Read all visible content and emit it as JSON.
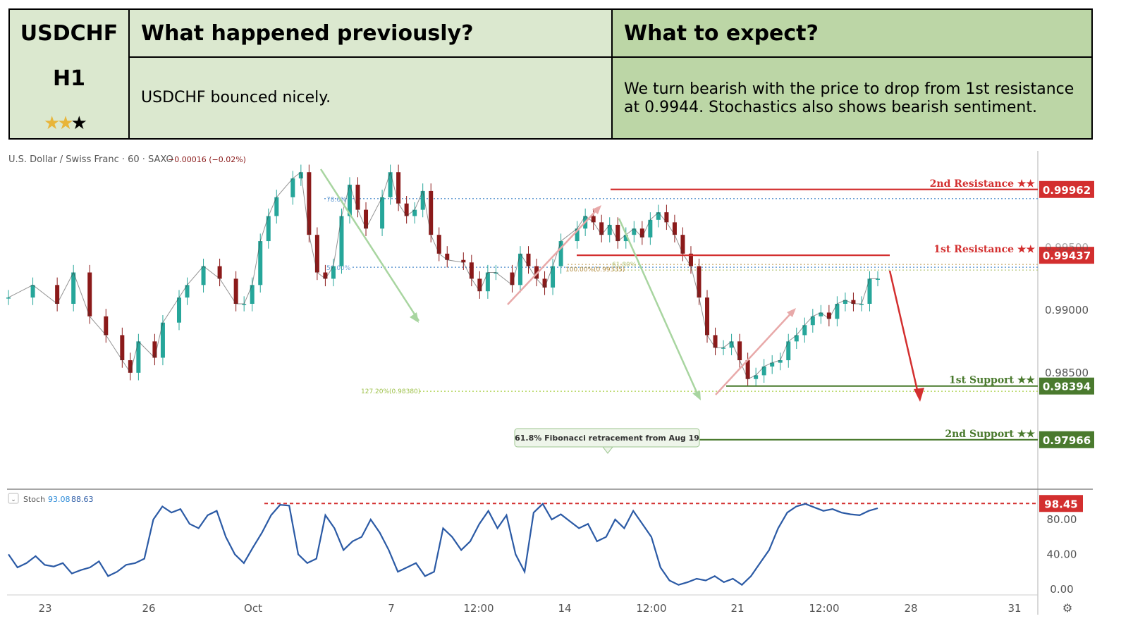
{
  "header": {
    "symbol": "USDCHF",
    "timeframe": "H1",
    "rating_stars": {
      "filled": 2,
      "total": 3
    },
    "prev_title": "What happened previously?",
    "prev_text": "USDCHF bounced nicely.",
    "expect_title": "What to expect?",
    "expect_text_line1": "We turn bearish with the price to drop from 1st resistance",
    "expect_text_line2": "at 0.9944. Stochastics also shows bearish sentiment."
  },
  "chart_data": {
    "type": "line",
    "info_line": "U.S. Dollar / Swiss Franc · 60 · SAXO",
    "change_text": "−0.00016 (−0.02%)",
    "price_axis": {
      "ticks": [
        "0.99000",
        "0.98500"
      ],
      "partial_tick": "0.99500",
      "range": [
        0.9765,
        1.0027
      ]
    },
    "x_ticks": [
      "23",
      "26",
      "Oct",
      "7",
      "12:00",
      "14",
      "12:00",
      "21",
      "12:00",
      "28",
      "31"
    ],
    "price_series": {
      "name": "USDCHF H1",
      "points": [
        [
          0,
          0.991
        ],
        [
          3,
          0.992
        ],
        [
          6,
          0.9905
        ],
        [
          8,
          0.993
        ],
        [
          10,
          0.9895
        ],
        [
          12,
          0.988
        ],
        [
          14,
          0.986
        ],
        [
          15,
          0.985
        ],
        [
          16,
          0.9875
        ],
        [
          18,
          0.9862
        ],
        [
          19,
          0.989
        ],
        [
          21,
          0.991
        ],
        [
          22,
          0.992
        ],
        [
          24,
          0.9935
        ],
        [
          26,
          0.9925
        ],
        [
          28,
          0.9905
        ],
        [
          29,
          0.9905
        ],
        [
          30,
          0.992
        ],
        [
          31,
          0.9955
        ],
        [
          32,
          0.9975
        ],
        [
          33,
          0.999
        ],
        [
          35,
          1.0005
        ],
        [
          36,
          1.001
        ],
        [
          37,
          0.996
        ],
        [
          38,
          0.993
        ],
        [
          39,
          0.9925
        ],
        [
          40,
          0.9935
        ],
        [
          41,
          0.9975
        ],
        [
          42,
          1.0
        ],
        [
          43,
          0.998
        ],
        [
          44,
          0.9965
        ],
        [
          46,
          0.999
        ],
        [
          47,
          1.001
        ],
        [
          48,
          0.9985
        ],
        [
          49,
          0.9975
        ],
        [
          50,
          0.998
        ],
        [
          51,
          0.9995
        ],
        [
          52,
          0.996
        ],
        [
          53,
          0.9945
        ],
        [
          54,
          0.994
        ],
        [
          56,
          0.9938
        ],
        [
          57,
          0.9925
        ],
        [
          58,
          0.9915
        ],
        [
          59,
          0.993
        ],
        [
          60,
          0.993
        ],
        [
          62,
          0.992
        ],
        [
          63,
          0.9945
        ],
        [
          64,
          0.9935
        ],
        [
          65,
          0.9925
        ],
        [
          66,
          0.9918
        ],
        [
          67,
          0.9935
        ],
        [
          68,
          0.9955
        ],
        [
          70,
          0.9965
        ],
        [
          71,
          0.9975
        ],
        [
          72,
          0.997
        ],
        [
          73,
          0.996
        ],
        [
          74,
          0.9968
        ],
        [
          75,
          0.9955
        ],
        [
          76,
          0.996
        ],
        [
          77,
          0.9965
        ],
        [
          78,
          0.9958
        ],
        [
          79,
          0.9972
        ],
        [
          80,
          0.9978
        ],
        [
          81,
          0.997
        ],
        [
          82,
          0.996
        ],
        [
          83,
          0.9945
        ],
        [
          84,
          0.9935
        ],
        [
          85,
          0.991
        ],
        [
          86,
          0.988
        ],
        [
          87,
          0.987
        ],
        [
          88,
          0.987
        ],
        [
          89,
          0.9875
        ],
        [
          90,
          0.986
        ],
        [
          91,
          0.9845
        ],
        [
          92,
          0.9848
        ],
        [
          93,
          0.9855
        ],
        [
          94,
          0.9858
        ],
        [
          95,
          0.986
        ],
        [
          96,
          0.9875
        ],
        [
          97,
          0.988
        ],
        [
          98,
          0.9888
        ],
        [
          99,
          0.9895
        ],
        [
          100,
          0.9898
        ],
        [
          101,
          0.9893
        ],
        [
          102,
          0.9905
        ],
        [
          103,
          0.9908
        ],
        [
          104,
          0.9905
        ],
        [
          105,
          0.9905
        ],
        [
          106,
          0.9925
        ],
        [
          107,
          0.9925
        ]
      ]
    },
    "levels": [
      {
        "label": "2nd Resistance ★★",
        "value": 0.99962,
        "value_text": "0.99962",
        "color": "#d32f2f"
      },
      {
        "label": "1st Resistance ★★",
        "value": 0.99437,
        "value_text": "0.99437",
        "color": "#d32f2f"
      },
      {
        "label": "1st Support ★★",
        "value": 0.98394,
        "value_text": "0.98394",
        "color": "#4a7a2e"
      },
      {
        "label": "2nd Support ★★",
        "value": 0.97966,
        "value_text": "0.97966",
        "color": "#4a7a2e"
      }
    ],
    "fib_labels": [
      "50.00%",
      "78.6%",
      "100.00%(0.99335)",
      "61.80%",
      "127.20%(0.98380)"
    ],
    "annotation": "61.8% Fibonacci retracement from Aug 19",
    "stochastic": {
      "label": "Stoch",
      "k_text": "93.08",
      "d_text": "88.63",
      "ticks": [
        "80.00",
        "40.00",
        "0.00"
      ],
      "level_text": "98.45",
      "level": 98.45,
      "range": [
        -5,
        110
      ],
      "values": [
        40,
        25,
        30,
        38,
        28,
        26,
        30,
        18,
        22,
        25,
        32,
        15,
        20,
        28,
        30,
        35,
        80,
        95,
        88,
        92,
        75,
        70,
        85,
        90,
        60,
        40,
        30,
        48,
        65,
        85,
        97,
        96,
        40,
        30,
        35,
        85,
        70,
        45,
        55,
        60,
        80,
        65,
        45,
        20,
        25,
        30,
        15,
        20,
        70,
        60,
        45,
        55,
        75,
        90,
        70,
        85,
        40,
        20,
        88,
        98,
        80,
        86,
        78,
        70,
        75,
        55,
        60,
        80,
        70,
        90,
        75,
        60,
        25,
        10,
        5,
        8,
        12,
        10,
        15,
        8,
        12,
        5,
        15,
        30,
        45,
        70,
        88,
        95,
        98,
        94,
        90,
        92,
        88,
        86,
        85,
        90,
        93
      ]
    },
    "colors": {
      "up": "#26a69a",
      "down": "#8b1a1a",
      "stoch_line": "#2b5aa5",
      "resistance": "#d32f2f",
      "support": "#4a7a2e",
      "fib": "#6a9fd4"
    }
  }
}
